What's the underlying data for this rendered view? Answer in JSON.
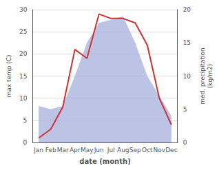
{
  "chart_data": {
    "type": "line",
    "xlabel": "date (month)",
    "ylabel": "max temp (C)",
    "y2label": "med. precipitation\n(kg/m2)",
    "categories": [
      "Jan",
      "Feb",
      "Mar",
      "Apr",
      "May",
      "Jun",
      "Jul",
      "Aug",
      "Sep",
      "Oct",
      "Nov",
      "Dec"
    ],
    "series": [
      {
        "type": "area",
        "axis": "y2",
        "color": "#b0b8e0",
        "values": [
          5.5,
          5.0,
          5.5,
          10.0,
          15.0,
          18.0,
          18.5,
          19.0,
          15.0,
          10.0,
          7.0,
          4.0
        ]
      },
      {
        "type": "line",
        "color": "#cc3333",
        "values": [
          1,
          3,
          8,
          21,
          19,
          29,
          28,
          28,
          27,
          22,
          10,
          4
        ]
      }
    ],
    "ylim": [
      0,
      30
    ],
    "yticks": [
      0,
      5,
      10,
      15,
      20,
      25,
      30
    ],
    "y2lim": [
      0,
      20
    ],
    "y2ticks": [
      0,
      5,
      10,
      15,
      20
    ],
    "grid": true
  }
}
